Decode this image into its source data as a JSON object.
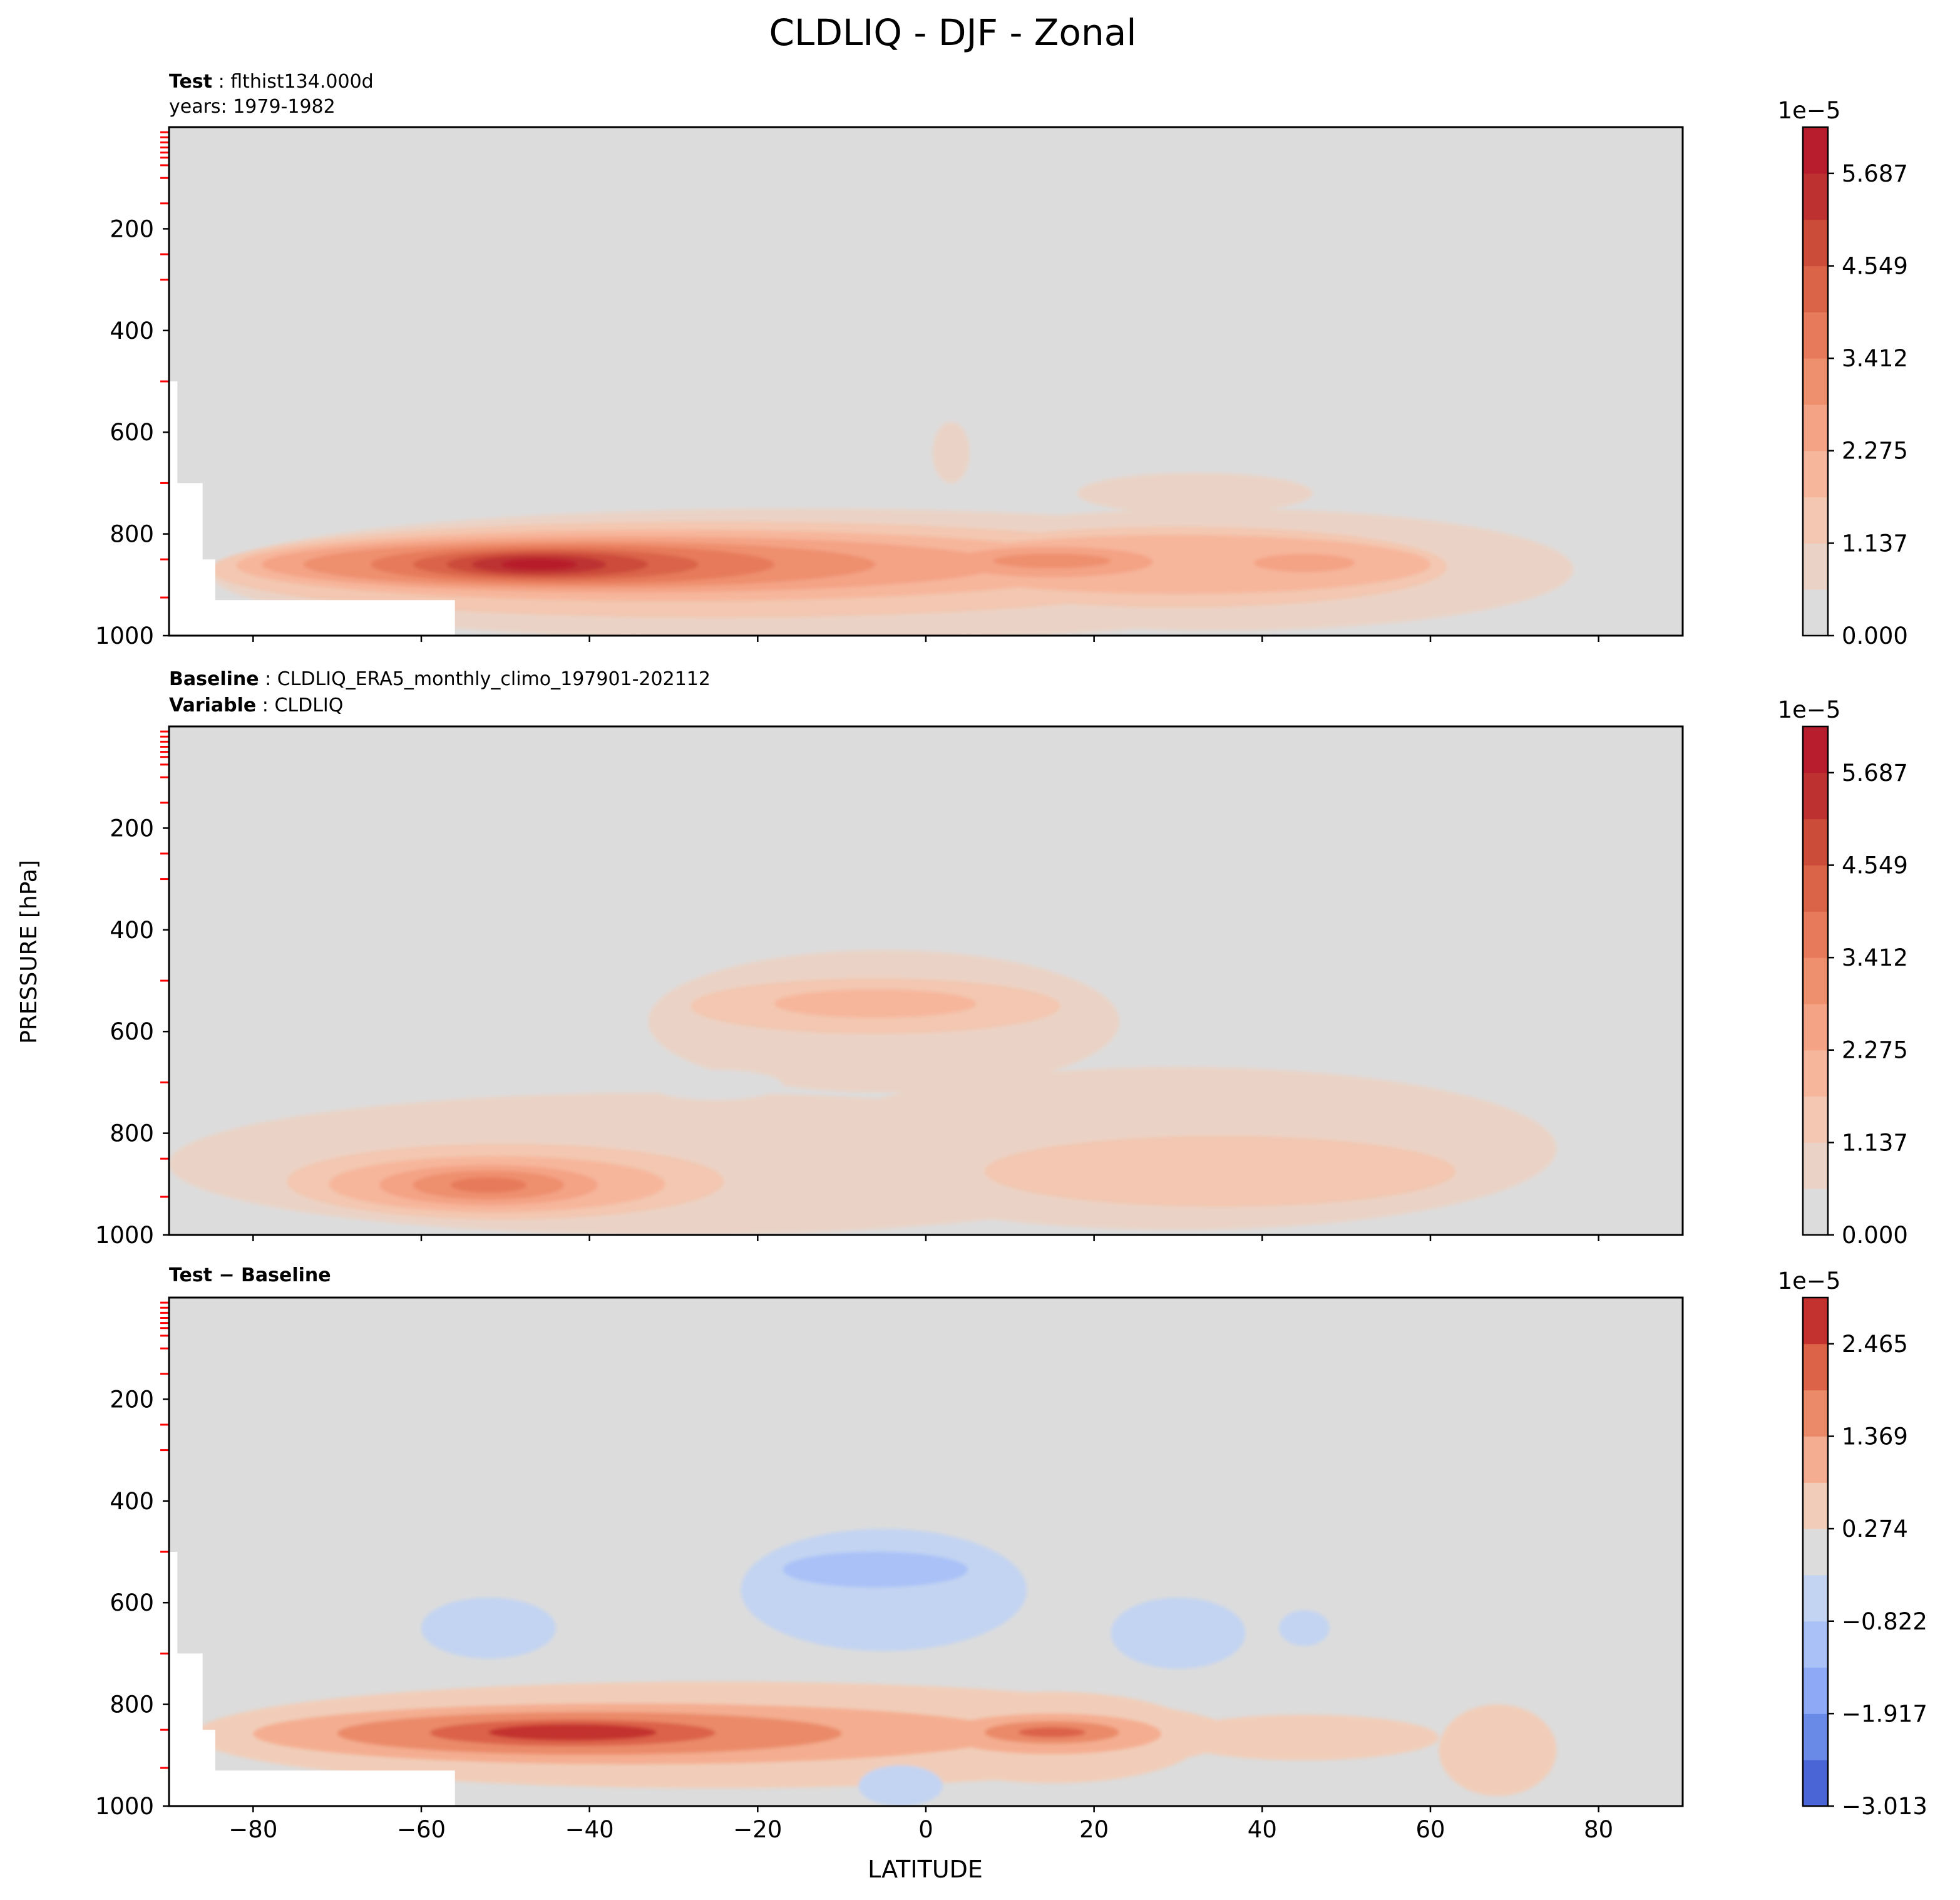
{
  "figure": {
    "title": "CLDLIQ - DJF - Zonal",
    "ylabel": "PRESSURE [hPa]",
    "xlabel": "LATITUDE"
  },
  "panels": [
    {
      "header_lines": [
        {
          "bold": "Test",
          "text": "flthist134.000d"
        },
        {
          "bold": "",
          "text": "years: 1979-1982"
        }
      ],
      "colorbar": {
        "multiplier": "1e−5",
        "ticks": [
          "5.687",
          "4.549",
          "3.412",
          "2.275",
          "1.137",
          "0.000"
        ]
      }
    },
    {
      "header_lines": [
        {
          "bold": "Baseline",
          "text": "CLDLIQ_ERA5_monthly_climo_197901-202112"
        },
        {
          "bold": "Variable",
          "text": "CLDLIQ"
        }
      ],
      "colorbar": {
        "multiplier": "1e−5",
        "ticks": [
          "5.687",
          "4.549",
          "3.412",
          "2.275",
          "1.137",
          "0.000"
        ]
      }
    },
    {
      "header_lines": [
        {
          "bold": "Test − Baseline",
          "text": ""
        }
      ],
      "colorbar": {
        "multiplier": "1e−5",
        "ticks": [
          "2.465",
          "1.369",
          "0.274",
          "−0.822",
          "−1.917",
          "−3.013"
        ]
      }
    }
  ],
  "chart_data": [
    {
      "type": "heatmap",
      "subtype": "filled-contour",
      "panel": "Test",
      "xlim": [
        -90,
        90
      ],
      "ylim": [
        1000,
        0
      ],
      "x_ticks": [
        "−80",
        "−60",
        "−40",
        "−20",
        "0",
        "20",
        "40",
        "60",
        "80"
      ],
      "y_ticks": [
        "200",
        "400",
        "600",
        "800",
        "1000"
      ],
      "color_range": [
        0.0,
        6.256e-05
      ],
      "levels": [
        0.0,
        0.569,
        1.137,
        1.706,
        2.275,
        2.843,
        3.412,
        3.981,
        4.549,
        5.118,
        5.687,
        6.256
      ],
      "colors": [
        "#dddcdc",
        "#ead3c6",
        "#f3c7b1",
        "#f6b69b",
        "#f4a385",
        "#ee8f6e",
        "#e67a5a",
        "#da6448",
        "#cc4c3a",
        "#bd3230",
        "#b71d2c"
      ],
      "features": [
        {
          "lat": -46,
          "p": 860,
          "value": 5.9,
          "description": "southern mid-latitude maximum"
        },
        {
          "lat": 15,
          "p": 855,
          "value": 3.2,
          "description": "northern subtropical maximum"
        },
        {
          "lat": 45,
          "p": 855,
          "value": 2.9,
          "description": "northern mid-latitude maximum"
        }
      ],
      "missing_region": "Antarctic topography below ~500-930 hPa, -90 to -56 latitude"
    },
    {
      "type": "heatmap",
      "subtype": "filled-contour",
      "panel": "Baseline",
      "xlim": [
        -90,
        90
      ],
      "ylim": [
        1000,
        0
      ],
      "x_ticks": [
        "−80",
        "−60",
        "−40",
        "−20",
        "0",
        "20",
        "40",
        "60",
        "80"
      ],
      "y_ticks": [
        "200",
        "400",
        "600",
        "800",
        "1000"
      ],
      "color_range": [
        0.0,
        6.256e-05
      ],
      "levels": [
        0.0,
        0.569,
        1.137,
        1.706,
        2.275,
        2.843,
        3.412,
        3.981,
        4.549,
        5.118,
        5.687,
        6.256
      ],
      "colors": [
        "#dddcdc",
        "#ead3c6",
        "#f3c7b1",
        "#f6b69b",
        "#f4a385",
        "#ee8f6e",
        "#e67a5a",
        "#da6448",
        "#cc4c3a",
        "#bd3230",
        "#b71d2c"
      ],
      "features": [
        {
          "lat": -52,
          "p": 900,
          "value": 3.6,
          "description": "southern mid-latitude maximum"
        },
        {
          "lat": -5,
          "p": 545,
          "value": 2.0,
          "description": "tropical mid-level maximum"
        },
        {
          "lat": 45,
          "p": 890,
          "value": 1.8,
          "description": "northern mid-latitude maximum"
        }
      ]
    },
    {
      "type": "heatmap",
      "subtype": "filled-contour",
      "panel": "Test − Baseline",
      "xlim": [
        -90,
        90
      ],
      "ylim": [
        1000,
        0
      ],
      "x_ticks": [
        "−80",
        "−60",
        "−40",
        "−20",
        "0",
        "20",
        "40",
        "60",
        "80"
      ],
      "y_ticks": [
        "200",
        "400",
        "600",
        "800",
        "1000"
      ],
      "color_range": [
        -3.013e-05,
        3.013e-05
      ],
      "levels": [
        -3.013,
        -2.465,
        -1.917,
        -1.369,
        -0.822,
        -0.274,
        0.274,
        0.822,
        1.369,
        1.917,
        2.465,
        3.013
      ],
      "colors": [
        "#4a65d6",
        "#6a8ae8",
        "#8eaaf6",
        "#a9c1f7",
        "#c3d4f2",
        "#dcdcdc",
        "#f1cdb9",
        "#f4ad90",
        "#ea8a69",
        "#dc6248",
        "#c3322e"
      ],
      "features": [
        {
          "lat": -42,
          "p": 855,
          "value": 2.8,
          "description": "southern mid-latitude positive maximum"
        },
        {
          "lat": 15,
          "p": 855,
          "value": 2.0,
          "description": "northern subtropical positive"
        },
        {
          "lat": -5,
          "p": 540,
          "value": -0.9,
          "description": "tropical mid-level negative"
        },
        {
          "lat": -52,
          "p": 650,
          "value": -0.6,
          "description": "southern negative patch"
        },
        {
          "lat": 30,
          "p": 650,
          "value": -0.6,
          "description": "northern negative patch"
        }
      ],
      "missing_region": "Antarctic topography below ~500-930 hPa, -90 to -56 latitude"
    }
  ]
}
